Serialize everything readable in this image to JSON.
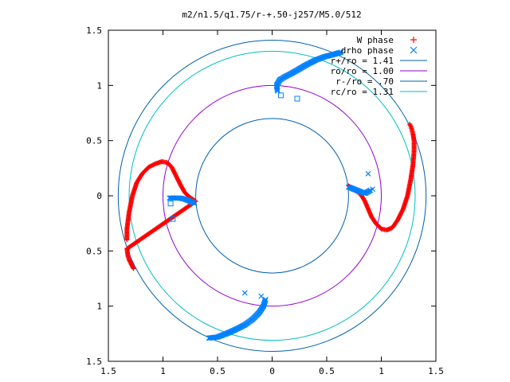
{
  "chart_data": {
    "type": "scatter",
    "title": "m2/n1.5/q1.75/r-+.50-j257/M5.0/512",
    "xlabel": "",
    "ylabel": "",
    "xlim": [
      -1.5,
      1.5
    ],
    "ylim": [
      -1.5,
      1.5
    ],
    "grid": false,
    "legend_position": "top-right",
    "x_ticks": [
      {
        "value": -1.5,
        "label": "1.5"
      },
      {
        "value": -1.0,
        "label": "1"
      },
      {
        "value": -0.5,
        "label": "0.5"
      },
      {
        "value": 0,
        "label": "0"
      },
      {
        "value": 0.5,
        "label": "0.5"
      },
      {
        "value": 1.0,
        "label": "1"
      },
      {
        "value": 1.5,
        "label": "1.5"
      }
    ],
    "y_ticks": [
      {
        "value": 1.5,
        "label": "1.5"
      },
      {
        "value": 1.0,
        "label": "1"
      },
      {
        "value": 0.5,
        "label": "0.5"
      },
      {
        "value": 0,
        "label": "0"
      },
      {
        "value": -0.5,
        "label": "0.5"
      },
      {
        "value": -1.0,
        "label": "1"
      },
      {
        "value": -1.5,
        "label": "1.5"
      }
    ],
    "series": [
      {
        "name": "W phase",
        "kind": "points",
        "marker": "plus",
        "color": "#ff0000",
        "arms": [
          [
            [
              0.7,
              0.09
            ],
            [
              0.73,
              0.07
            ],
            [
              0.76,
              0.05
            ],
            [
              0.79,
              0.03
            ],
            [
              0.82,
              0.0
            ],
            [
              0.85,
              -0.05
            ],
            [
              0.88,
              -0.12
            ],
            [
              0.91,
              -0.19
            ],
            [
              0.95,
              -0.25
            ],
            [
              1.0,
              -0.3
            ],
            [
              1.05,
              -0.31
            ],
            [
              1.1,
              -0.29
            ],
            [
              1.15,
              -0.22
            ],
            [
              1.2,
              -0.12
            ],
            [
              1.24,
              0.0
            ],
            [
              1.27,
              0.15
            ],
            [
              1.29,
              0.28
            ],
            [
              1.3,
              0.4
            ],
            [
              1.3,
              0.5
            ],
            [
              1.29,
              0.56
            ],
            [
              1.28,
              0.6
            ],
            [
              1.27,
              0.63
            ],
            [
              1.26,
              0.65
            ]
          ],
          [
            [
              -1.33,
              -0.4
            ],
            [
              -1.33,
              -0.3
            ],
            [
              -1.31,
              -0.15
            ],
            [
              -1.28,
              0.0
            ],
            [
              -1.24,
              0.12
            ],
            [
              -1.19,
              0.2
            ],
            [
              -1.13,
              0.26
            ],
            [
              -1.07,
              0.29
            ],
            [
              -1.01,
              0.31
            ],
            [
              -0.96,
              0.3
            ],
            [
              -0.92,
              0.26
            ],
            [
              -0.88,
              0.18
            ],
            [
              -0.84,
              0.1
            ],
            [
              -0.8,
              0.03
            ],
            [
              -0.76,
              -0.01
            ],
            [
              -0.73,
              -0.03
            ],
            [
              -0.7,
              -0.05
            ],
            [
              -1.33,
              -0.48
            ],
            [
              -1.32,
              -0.55
            ],
            [
              -1.31,
              -0.58
            ],
            [
              -1.27,
              -0.66
            ]
          ]
        ]
      },
      {
        "name": "drho phase",
        "kind": "points",
        "marker": "cross",
        "color": "#0080ff",
        "arms": [
          [
            [
              0.05,
              0.95
            ],
            [
              0.04,
              1.0
            ],
            [
              0.07,
              1.05
            ],
            [
              0.12,
              1.08
            ],
            [
              0.18,
              1.11
            ],
            [
              0.25,
              1.15
            ],
            [
              0.32,
              1.19
            ],
            [
              0.4,
              1.23
            ],
            [
              0.48,
              1.26
            ],
            [
              0.56,
              1.28
            ],
            [
              0.63,
              1.3
            ]
          ],
          [
            [
              -0.06,
              -0.94
            ],
            [
              -0.08,
              -1.0
            ],
            [
              -0.12,
              -1.06
            ],
            [
              -0.18,
              -1.12
            ],
            [
              -0.25,
              -1.17
            ],
            [
              -0.33,
              -1.21
            ],
            [
              -0.42,
              -1.25
            ],
            [
              -0.5,
              -1.28
            ],
            [
              -0.58,
              -1.29
            ]
          ],
          [
            [
              -0.94,
              -0.02
            ],
            [
              -0.9,
              -0.02
            ],
            [
              -0.85,
              -0.02
            ],
            [
              -0.8,
              -0.03
            ],
            [
              -0.75,
              -0.05
            ],
            [
              -0.71,
              -0.07
            ]
          ],
          [
            [
              0.7,
              0.08
            ],
            [
              0.75,
              0.06
            ],
            [
              0.8,
              0.04
            ],
            [
              0.85,
              0.02
            ],
            [
              0.9,
              0.05
            ]
          ],
          [
            [
              0.88,
              0.2
            ],
            [
              0.92,
              0.06
            ],
            [
              -0.25,
              -0.88
            ],
            [
              -0.1,
              -0.91
            ]
          ]
        ]
      },
      {
        "name": "r+/ro = 1.41",
        "kind": "circle",
        "radius": 1.41,
        "color": "#0060ad"
      },
      {
        "name": "ro/ro = 1.00",
        "kind": "circle",
        "radius": 1.0,
        "color": "#9400d3"
      },
      {
        "name": "r-/ro = .70",
        "kind": "circle",
        "radius": 0.7,
        "color": "#0060ad"
      },
      {
        "name": "rc/ro = 1.31",
        "kind": "circle",
        "radius": 1.31,
        "color": "#00c0c0"
      }
    ],
    "extra_points": {
      "marker": "square",
      "color": "#0080ff",
      "points": [
        [
          0.08,
          0.91
        ],
        [
          0.23,
          0.88
        ],
        [
          -0.93,
          -0.07
        ],
        [
          -0.91,
          -0.21
        ]
      ]
    }
  }
}
